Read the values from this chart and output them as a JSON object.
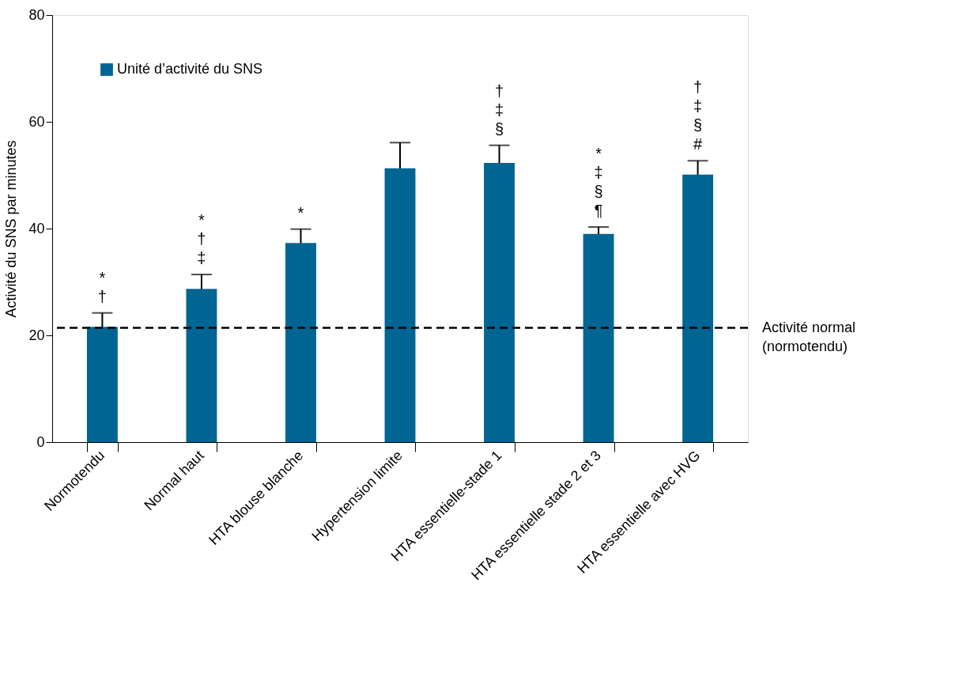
{
  "chart_data": {
    "type": "bar",
    "ylabel": "Activité du SNS par minutes",
    "categories": [
      "Normotendu",
      "Normal haut",
      "HTA blouse blanche",
      "Hypertension limite",
      "HTA essentielle-stade 1",
      "HTA essentielle stade 2 et 3",
      "HTA essentielle avec HVG"
    ],
    "series": [
      {
        "name": "Unité d’activité du SNS",
        "color": "#006593",
        "values": [
          21.6,
          28.7,
          37.3,
          51.3,
          52.3,
          39.0,
          50.1
        ],
        "errors": [
          2.6,
          2.7,
          2.6,
          4.8,
          3.3,
          1.3,
          2.6
        ],
        "value_labels": [
          "*\n†",
          "*\n†\n‡",
          "*",
          null,
          "†\n‡\n§",
          "*\n‡\n§\n¶",
          "†\n‡\n§\n#"
        ]
      }
    ],
    "ylim": [
      0,
      80
    ],
    "yticks": [
      0,
      20,
      40,
      60,
      80
    ],
    "grid": false,
    "legend": "top left",
    "ref_lines": [
      {
        "axis": "y",
        "value": 21.4,
        "label": "Activité normal\n(normotendu)",
        "color": "#000000",
        "line_style": "dashed"
      }
    ]
  }
}
